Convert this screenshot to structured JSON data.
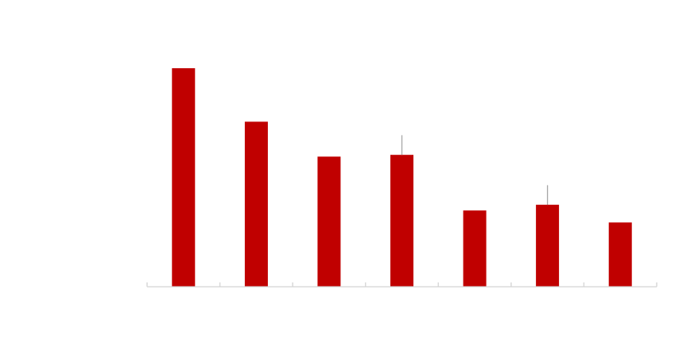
{
  "chart_data": {
    "type": "bar",
    "categories": [
      "",
      "",
      "",
      "",
      "",
      "",
      ""
    ],
    "values": [
      100,
      75.5,
      59.5,
      60.3,
      34.8,
      37.4,
      29.3
    ],
    "error_upper": [
      null,
      null,
      null,
      9,
      null,
      9,
      null
    ],
    "ylim": [
      0,
      100
    ],
    "grid": false,
    "legend": "none",
    "colors": {
      "bar": "#c00000",
      "axis": "#d9d9d9",
      "error_bar": "#a6a6a6"
    }
  }
}
